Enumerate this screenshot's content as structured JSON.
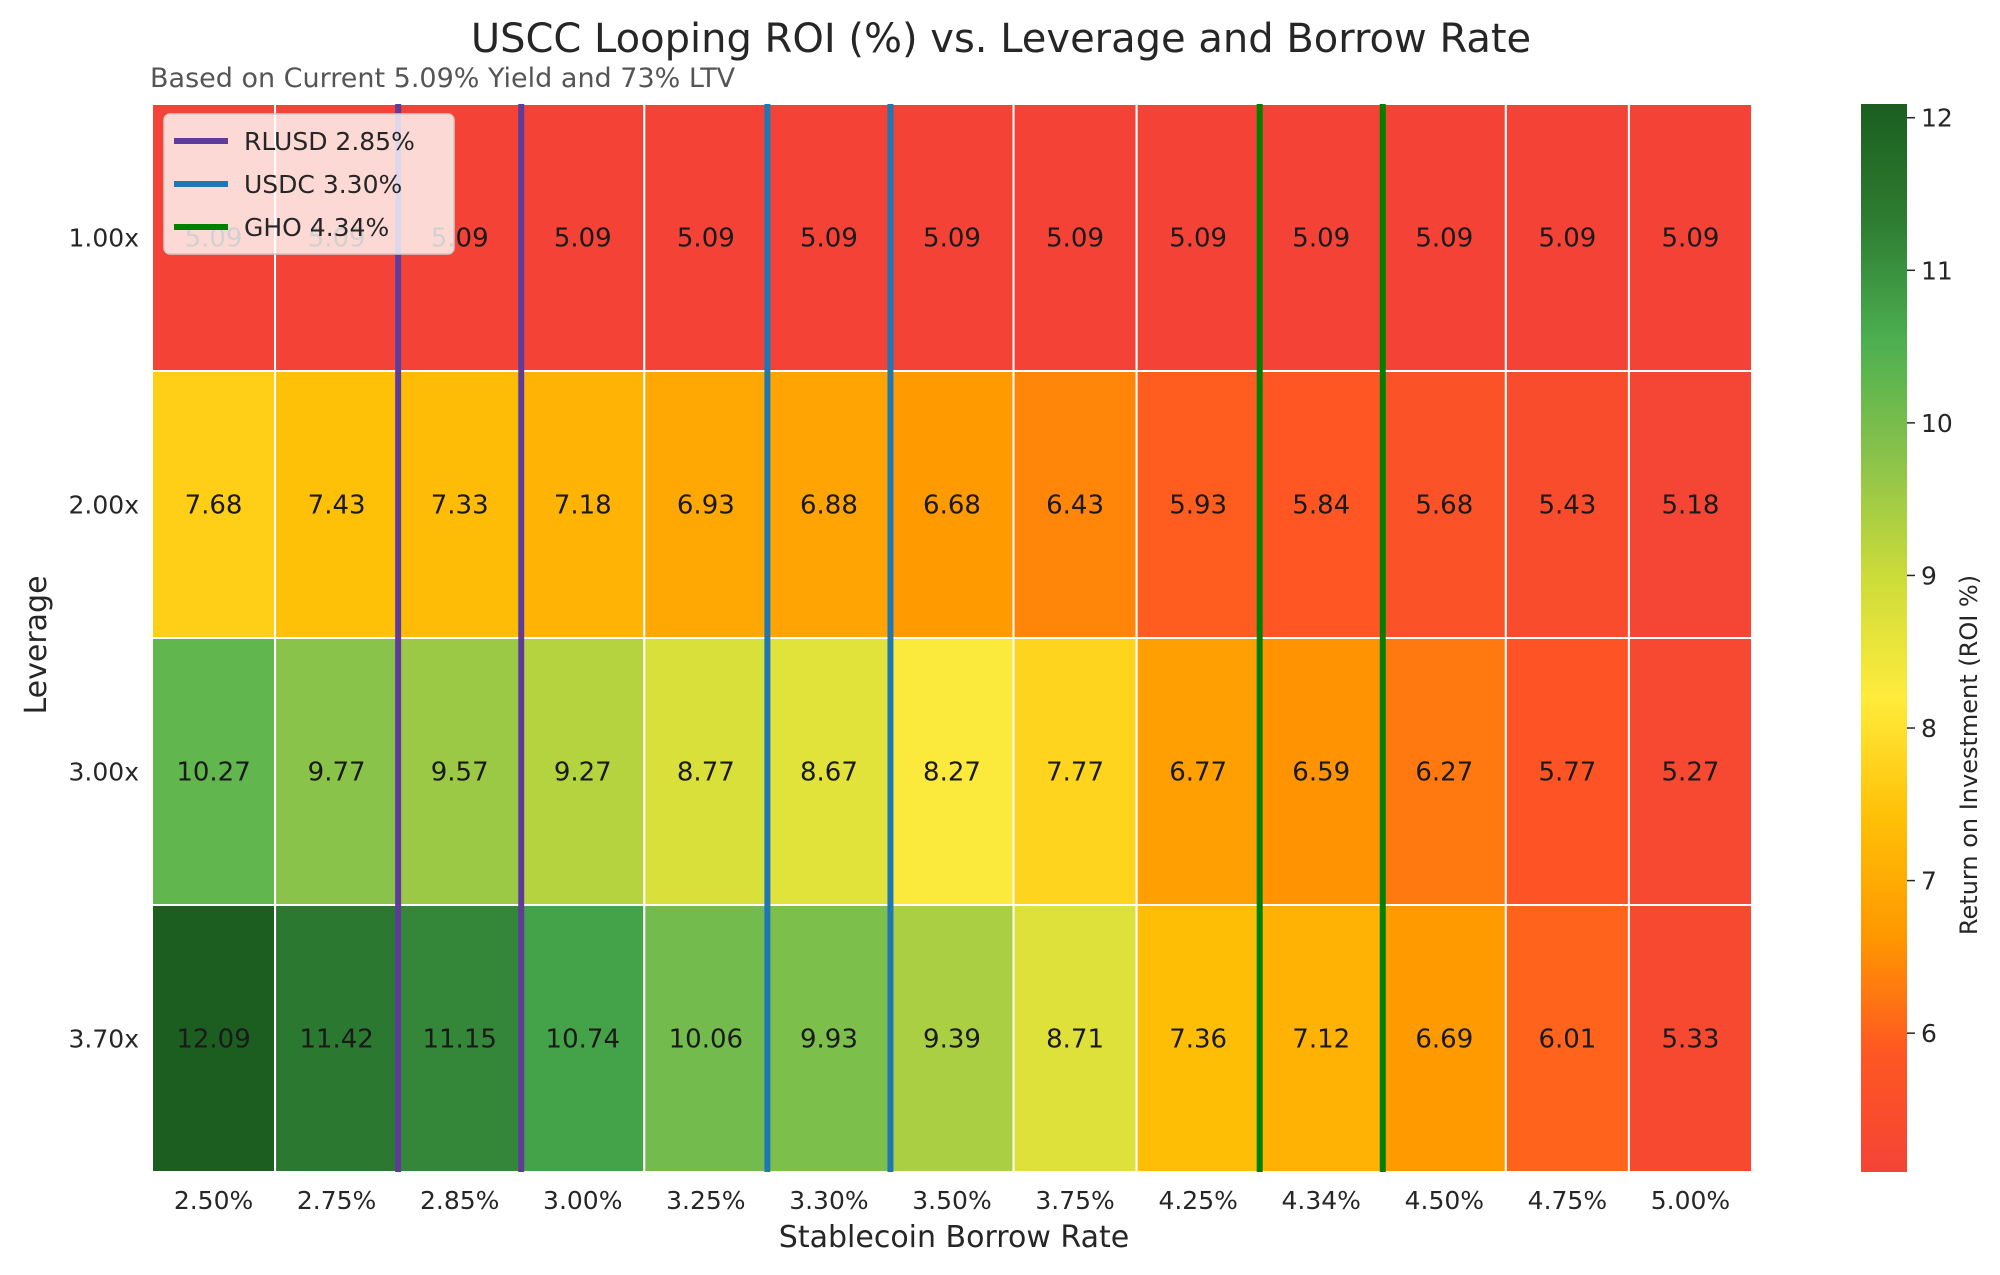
{
  "chart_data": {
    "type": "heatmap",
    "title": "USCC Looping ROI (%) vs. Leverage and Borrow Rate",
    "subtitle": "Based on Current 5.09% Yield and 73% LTV",
    "xlabel": "Stablecoin Borrow Rate",
    "ylabel": "Leverage",
    "x": [
      "2.50%",
      "2.75%",
      "2.85%",
      "3.00%",
      "3.25%",
      "3.30%",
      "3.50%",
      "3.75%",
      "4.25%",
      "4.34%",
      "4.50%",
      "4.75%",
      "5.00%"
    ],
    "y": [
      "1.00x",
      "2.00x",
      "3.00x",
      "3.70x"
    ],
    "values": [
      [
        5.09,
        5.09,
        5.09,
        5.09,
        5.09,
        5.09,
        5.09,
        5.09,
        5.09,
        5.09,
        5.09,
        5.09,
        5.09
      ],
      [
        7.68,
        7.43,
        7.33,
        7.18,
        6.93,
        6.88,
        6.68,
        6.43,
        5.93,
        5.84,
        5.68,
        5.43,
        5.18
      ],
      [
        10.27,
        9.77,
        9.57,
        9.27,
        8.77,
        8.67,
        8.27,
        7.77,
        6.77,
        6.59,
        6.27,
        5.77,
        5.27
      ],
      [
        12.09,
        11.42,
        11.15,
        10.74,
        10.06,
        9.93,
        9.39,
        8.71,
        7.36,
        7.12,
        6.69,
        6.01,
        5.33
      ]
    ],
    "value_labels": [
      [
        "5.09",
        "5.09",
        "5.09",
        "5.09",
        "5.09",
        "5.09",
        "5.09",
        "5.09",
        "5.09",
        "5.09",
        "5.09",
        "5.09",
        "5.09"
      ],
      [
        "7.68",
        "7.43",
        "7.33",
        "7.18",
        "6.93",
        "6.88",
        "6.68",
        "6.43",
        "5.93",
        "5.84",
        "5.68",
        "5.43",
        "5.18"
      ],
      [
        "10.27",
        "9.77",
        "9.57",
        "9.27",
        "8.77",
        "8.67",
        "8.27",
        "7.77",
        "6.77",
        "6.59",
        "6.27",
        "5.77",
        "5.27"
      ],
      [
        "12.09",
        "11.42",
        "11.15",
        "10.74",
        "10.06",
        "9.93",
        "9.39",
        "8.71",
        "7.36",
        "7.12",
        "6.69",
        "6.01",
        "5.33"
      ]
    ],
    "color_range": [
      5.09,
      12.09
    ],
    "colormap": [
      "#f44336",
      "#ff5722",
      "#ff9800",
      "#ffc107",
      "#ffeb3b",
      "#cddc39",
      "#8bc34a",
      "#4caf50",
      "#2e7d32",
      "#1b5e20"
    ],
    "colorbar": {
      "label": "Return on Investment (ROI %)",
      "ticks": [
        6,
        7,
        8,
        9,
        10,
        11,
        12
      ],
      "tick_labels": [
        "6",
        "7",
        "8",
        "9",
        "10",
        "11",
        "12"
      ]
    },
    "reference_lines": [
      {
        "name": "RLUSD 2.85%",
        "label": "RLUSD 2.85%",
        "color": "#5e3c99",
        "column": "2.85%"
      },
      {
        "name": "USDC 3.30%",
        "label": "USDC 3.30%",
        "color": "#1f77b4",
        "column": "3.30%"
      },
      {
        "name": "GHO 4.34%",
        "label": "GHO 4.34%",
        "color": "#008000",
        "column": "4.34%"
      }
    ],
    "legend": {
      "position": "top-left",
      "entries": [
        "RLUSD 2.85%",
        "USDC 3.30%",
        "GHO 4.34%"
      ]
    }
  }
}
